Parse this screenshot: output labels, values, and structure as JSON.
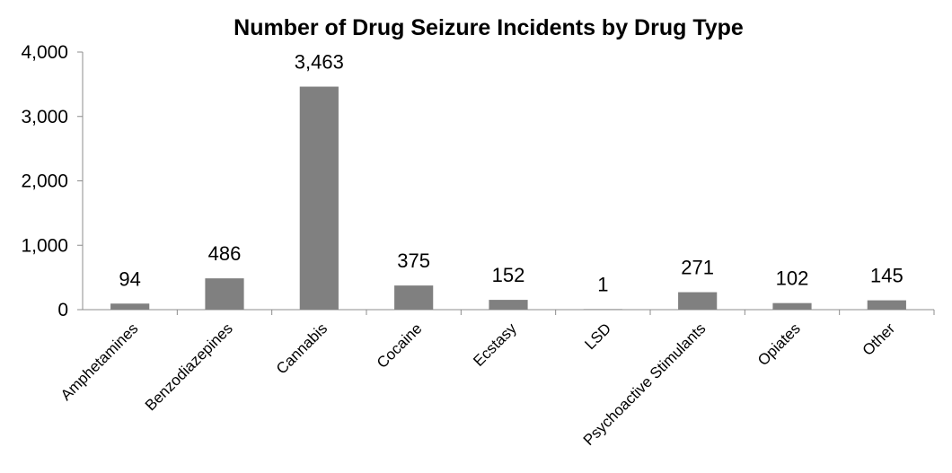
{
  "chart_data": {
    "type": "bar",
    "title": "Number of Drug Seizure Incidents by Drug Type",
    "categories": [
      "Amphetamines",
      "Benzodiazepines",
      "Cannabis",
      "Cocaine",
      "Ecstasy",
      "LSD",
      "Psychoactive Stimulants",
      "Opiates",
      "Other"
    ],
    "values": [
      94,
      486,
      3463,
      375,
      152,
      1,
      271,
      102,
      145
    ],
    "data_labels": [
      "94",
      "486",
      "3,463",
      "375",
      "152",
      "1",
      "271",
      "102",
      "145"
    ],
    "ylim": [
      0,
      4000
    ],
    "yticks": [
      0,
      1000,
      2000,
      3000,
      4000
    ],
    "ytick_labels": [
      "0",
      "1,000",
      "2,000",
      "3,000",
      "4,000"
    ],
    "bar_color": "#808080",
    "grid": false,
    "legend": "none"
  }
}
